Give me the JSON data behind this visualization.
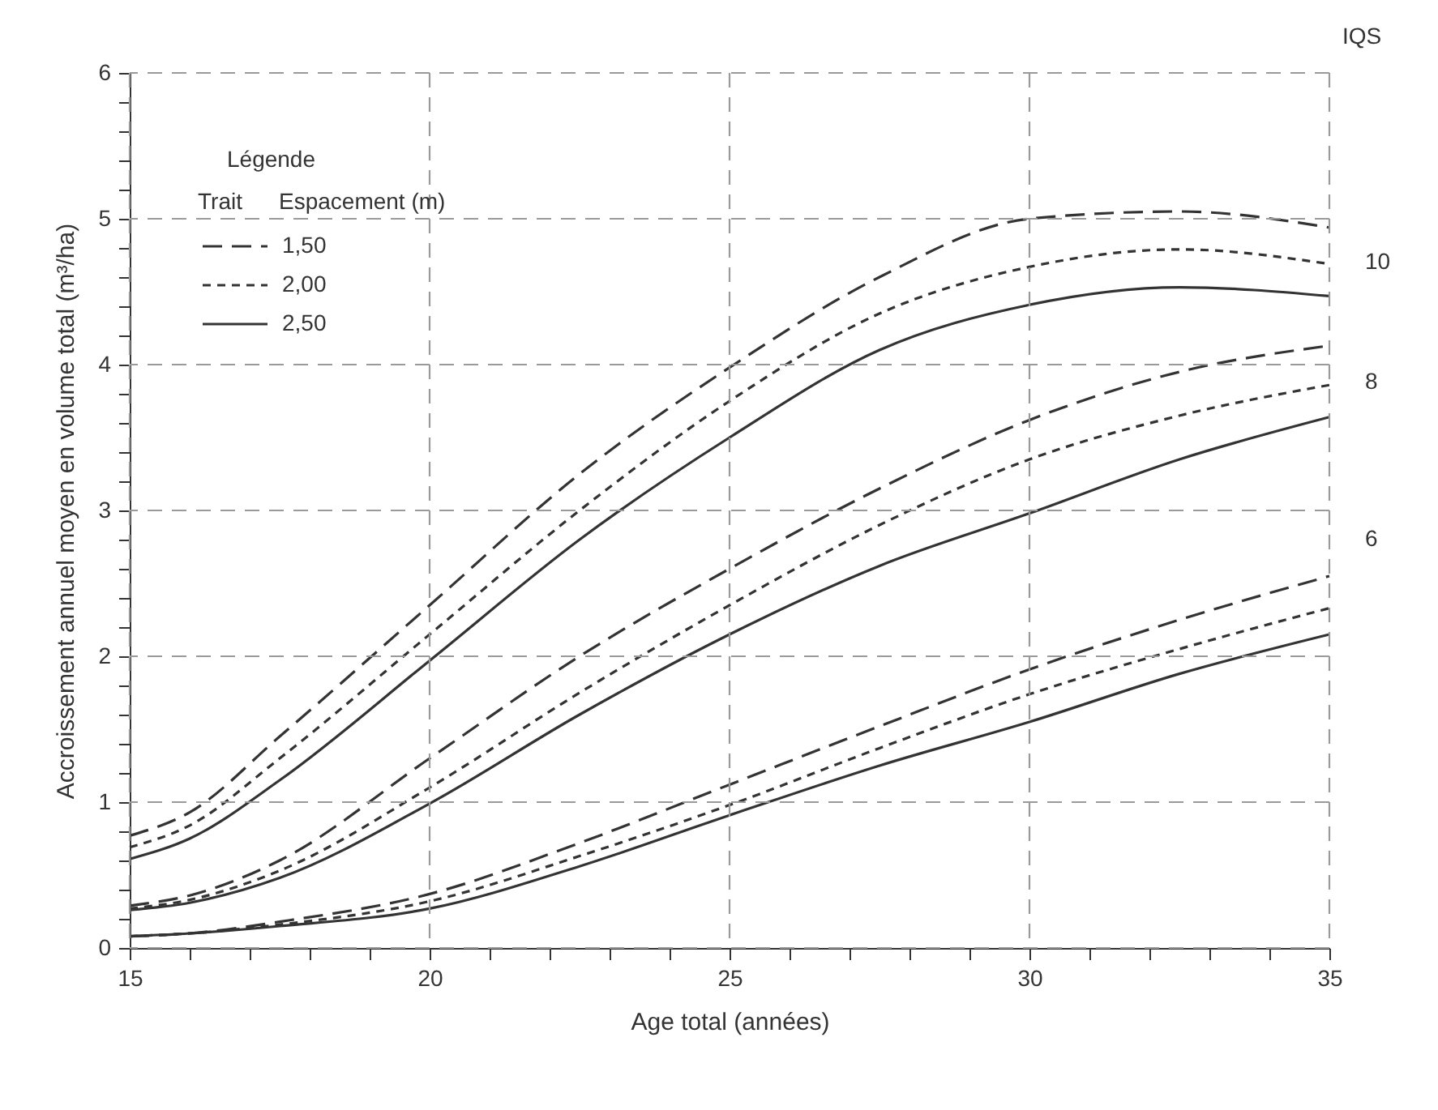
{
  "chart_data": {
    "type": "line",
    "xlabel": "Age total (années)",
    "ylabel": "Accroissement annuel moyen en volume total (m³/ha)",
    "legend_title": "Espacement (m)",
    "x": [
      15,
      16,
      17.5,
      20,
      22.5,
      25,
      27.5,
      30,
      32.5,
      35
    ],
    "series": [
      {
        "name": "1,50",
        "color": "#333333",
        "line_style": "dashed",
        "values": [
          0.77,
          0.93,
          1.45,
          2.35,
          3.25,
          3.98,
          4.6,
          5.0,
          5.05,
          4.94
        ]
      },
      {
        "name": "2,00",
        "color": "#333333",
        "line_style": "dotted",
        "values": [
          0.69,
          0.84,
          1.3,
          2.15,
          3.0,
          3.75,
          4.35,
          4.67,
          4.79,
          4.69
        ]
      },
      {
        "name": "2,50",
        "color": "#333333",
        "line_style": "solid",
        "values": [
          0.61,
          0.75,
          1.15,
          1.97,
          2.8,
          3.5,
          4.1,
          4.41,
          4.53,
          4.47
        ]
      },
      {
        "color": "#333333",
        "line_style": "dashed",
        "values": [
          0.29,
          0.36,
          0.6,
          1.3,
          2.0,
          2.6,
          3.15,
          3.62,
          3.95,
          4.13
        ]
      },
      {
        "color": "#333333",
        "line_style": "dotted",
        "values": [
          0.27,
          0.33,
          0.53,
          1.1,
          1.75,
          2.35,
          2.9,
          3.35,
          3.65,
          3.86
        ]
      },
      {
        "color": "#333333",
        "line_style": "solid",
        "values": [
          0.26,
          0.31,
          0.48,
          0.99,
          1.6,
          2.15,
          2.62,
          2.98,
          3.35,
          3.64
        ]
      },
      {
        "color": "#333333",
        "line_style": "dashed",
        "values": [
          0.08,
          0.1,
          0.18,
          0.37,
          0.72,
          1.12,
          1.52,
          1.91,
          2.25,
          2.55
        ]
      },
      {
        "color": "#333333",
        "line_style": "dotted",
        "values": [
          0.08,
          0.1,
          0.16,
          0.32,
          0.63,
          0.98,
          1.37,
          1.74,
          2.05,
          2.33
        ]
      },
      {
        "color": "#333333",
        "line_style": "solid",
        "values": [
          0.08,
          0.1,
          0.15,
          0.27,
          0.56,
          0.91,
          1.25,
          1.55,
          1.88,
          2.15
        ]
      }
    ],
    "annotations": [
      "IQS",
      "Légende",
      "Trait",
      "10",
      "8",
      "6"
    ],
    "xlim": [
      15,
      35
    ],
    "xticks": [
      15,
      {
        "value": 16,
        "label": null
      },
      {
        "value": 17,
        "label": null
      },
      {
        "value": 18,
        "label": null
      },
      {
        "value": 19,
        "label": null
      },
      20,
      {
        "value": 21,
        "label": null
      },
      {
        "value": 22,
        "label": null
      },
      {
        "value": 23,
        "label": null
      },
      {
        "value": 24,
        "label": null
      },
      25,
      {
        "value": 26,
        "label": null
      },
      {
        "value": 27,
        "label": null
      },
      {
        "value": 28,
        "label": null
      },
      {
        "value": 29,
        "label": null
      },
      30,
      {
        "value": 31,
        "label": null
      },
      {
        "value": 32,
        "label": null
      },
      {
        "value": 33,
        "label": null
      },
      {
        "value": 34,
        "label": null
      },
      35
    ],
    "ylim": [
      0,
      6
    ],
    "yticks": [
      0,
      {
        "value": 0.2,
        "label": null
      },
      {
        "value": 0.4,
        "label": null
      },
      {
        "value": 0.6,
        "label": null
      },
      {
        "value": 0.8,
        "label": null
      },
      1,
      {
        "value": 1.2,
        "label": null
      },
      {
        "value": 1.4,
        "label": null
      },
      {
        "value": 1.6,
        "label": null
      },
      {
        "value": 1.8,
        "label": null
      },
      2,
      {
        "value": 2.2,
        "label": null
      },
      {
        "value": 2.4,
        "label": null
      },
      {
        "value": 2.6,
        "label": null
      },
      {
        "value": 2.8,
        "label": null
      },
      3,
      {
        "value": 3.2,
        "label": null
      },
      {
        "value": 3.4,
        "label": null
      },
      {
        "value": 3.6,
        "label": null
      },
      {
        "value": 3.8,
        "label": null
      },
      4,
      {
        "value": 4.2,
        "label": null
      },
      {
        "value": 4.4,
        "label": null
      },
      {
        "value": 4.6,
        "label": null
      },
      {
        "value": 4.8,
        "label": null
      },
      5,
      {
        "value": 5.2,
        "label": null
      },
      {
        "value": 5.4,
        "label": null
      },
      {
        "value": 5.6,
        "label": null
      },
      {
        "value": 5.8,
        "label": null
      },
      6
    ],
    "grid": true,
    "legend": "top left",
    "marker": "none"
  }
}
